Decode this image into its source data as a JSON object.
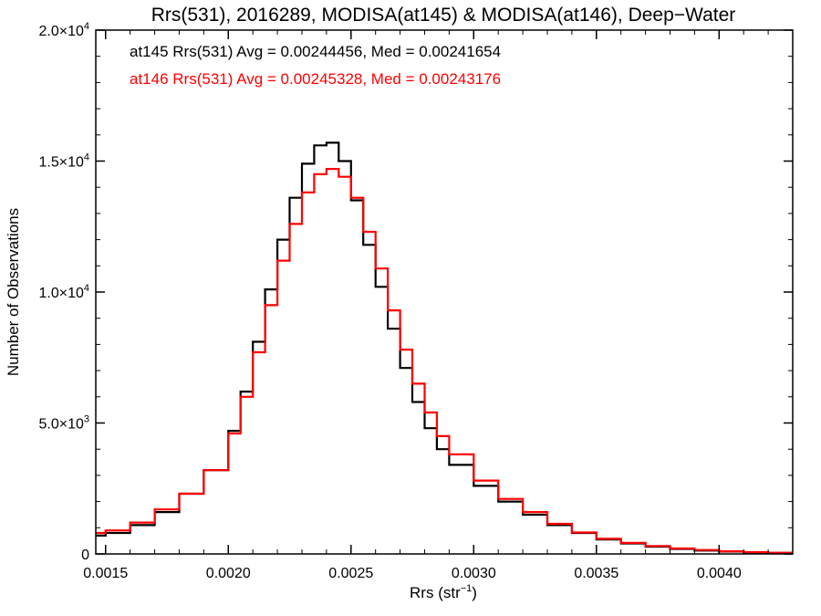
{
  "chart_data": {
    "type": "line",
    "title": "Rrs(531), 2016289, MODISA(at145) & MODISA(at146), Deep−Water",
    "xlabel": "Rrs (str",
    "xlabel_sup": "−1",
    "xlabel_tail": ")",
    "ylabel": "Number of Observations",
    "xlim": [
      0.00146,
      0.0043
    ],
    "ylim": [
      0,
      20000
    ],
    "x_ticks": [
      {
        "value": 0.0015,
        "label": "0.0015"
      },
      {
        "value": 0.002,
        "label": "0.0020"
      },
      {
        "value": 0.0025,
        "label": "0.0025"
      },
      {
        "value": 0.003,
        "label": "0.0030"
      },
      {
        "value": 0.0035,
        "label": "0.0035"
      },
      {
        "value": 0.004,
        "label": "0.0040"
      }
    ],
    "y_ticks": [
      {
        "value": 0,
        "label": "0",
        "sup": ""
      },
      {
        "value": 5000,
        "label": "5.0×10",
        "sup": "3"
      },
      {
        "value": 10000,
        "label": "1.0×10",
        "sup": "4"
      },
      {
        "value": 15000,
        "label": "1.5×10",
        "sup": "4"
      },
      {
        "value": 20000,
        "label": "2.0×10",
        "sup": "4"
      }
    ],
    "annotations": [
      {
        "text": "at145 Rrs(531) Avg = 0.00244456, Med = 0.00241654",
        "color": "#000000"
      },
      {
        "text": "at146 Rrs(531) Avg = 0.00245328, Med = 0.00243176",
        "color": "#ff0000"
      }
    ],
    "series": [
      {
        "color": "#000000",
        "x": [
          0.00146,
          0.0015,
          0.0016,
          0.0017,
          0.0018,
          0.0019,
          0.002,
          0.00205,
          0.0021,
          0.00215,
          0.0022,
          0.00225,
          0.0023,
          0.00235,
          0.0024,
          0.00245,
          0.0025,
          0.00255,
          0.0026,
          0.00265,
          0.0027,
          0.00275,
          0.0028,
          0.00285,
          0.0029,
          0.003,
          0.0031,
          0.0032,
          0.0033,
          0.0034,
          0.0035,
          0.0036,
          0.0037,
          0.0038,
          0.0039,
          0.004,
          0.0041,
          0.0042,
          0.0043
        ],
        "y": [
          700,
          800,
          1100,
          1600,
          2300,
          3200,
          4700,
          6200,
          8100,
          10100,
          12000,
          13600,
          14900,
          15600,
          15700,
          15000,
          13500,
          11800,
          10200,
          8600,
          7100,
          5800,
          4800,
          4000,
          3400,
          2600,
          2000,
          1500,
          1100,
          800,
          550,
          400,
          280,
          190,
          130,
          90,
          60,
          40,
          25
        ]
      },
      {
        "color": "#ff0000",
        "x": [
          0.00146,
          0.0015,
          0.0016,
          0.0017,
          0.0018,
          0.0019,
          0.002,
          0.00205,
          0.0021,
          0.00215,
          0.0022,
          0.00225,
          0.0023,
          0.00235,
          0.0024,
          0.00245,
          0.0025,
          0.00255,
          0.0026,
          0.00265,
          0.0027,
          0.00275,
          0.0028,
          0.00285,
          0.0029,
          0.003,
          0.0031,
          0.0032,
          0.0033,
          0.0034,
          0.0035,
          0.0036,
          0.0037,
          0.0038,
          0.0039,
          0.004,
          0.0041,
          0.0042,
          0.0043
        ],
        "y": [
          800,
          900,
          1200,
          1700,
          2300,
          3200,
          4600,
          6000,
          7700,
          9500,
          11200,
          12600,
          13800,
          14500,
          14700,
          14400,
          13600,
          12300,
          10900,
          9300,
          7800,
          6500,
          5400,
          4500,
          3800,
          2800,
          2100,
          1600,
          1150,
          820,
          580,
          420,
          300,
          210,
          150,
          100,
          70,
          45,
          30
        ]
      }
    ]
  }
}
